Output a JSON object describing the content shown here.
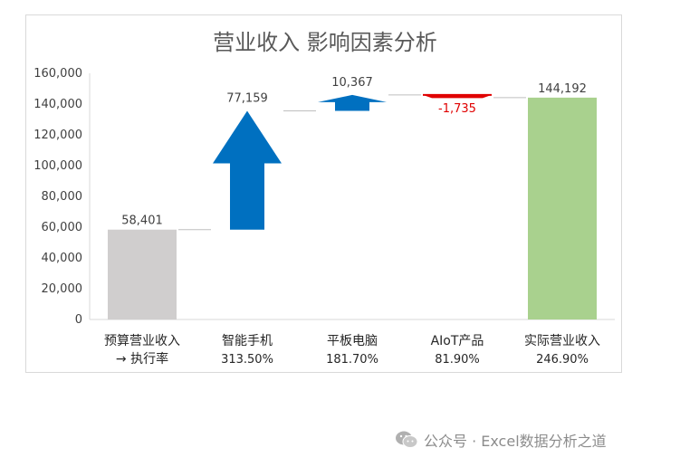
{
  "chart_data": {
    "type": "bar",
    "subtype": "waterfall",
    "title": "营业收入 影响因素分析",
    "ylim": [
      0,
      160000
    ],
    "yticks": [
      "0",
      "20,000",
      "40,000",
      "60,000",
      "80,000",
      "100,000",
      "120,000",
      "140,000",
      "160,000"
    ],
    "grid": false,
    "legend": "none",
    "categories": [
      {
        "label": "预算营业收入",
        "label2": "→ 执行率",
        "kind": "total",
        "value": 58401,
        "value_label": "58,401",
        "color": "#d0cece"
      },
      {
        "label": "智能手机",
        "label2": "313.50%",
        "kind": "delta",
        "value": 77159,
        "value_label": "77,159",
        "color": "#0070c0"
      },
      {
        "label": "平板电脑",
        "label2": "181.70%",
        "kind": "delta",
        "value": 10367,
        "value_label": "10,367",
        "color": "#0070c0"
      },
      {
        "label": "AIoT产品",
        "label2": "81.90%",
        "kind": "delta",
        "value": -1735,
        "value_label": "-1,735",
        "color": "#e00000"
      },
      {
        "label": "实际营业收入",
        "label2": "246.90%",
        "kind": "total",
        "value": 144192,
        "value_label": "144,192",
        "color": "#a9d18e"
      }
    ]
  },
  "watermark": {
    "text": "公众号 · Excel数据分析之道",
    "icon": "wechat-icon"
  }
}
